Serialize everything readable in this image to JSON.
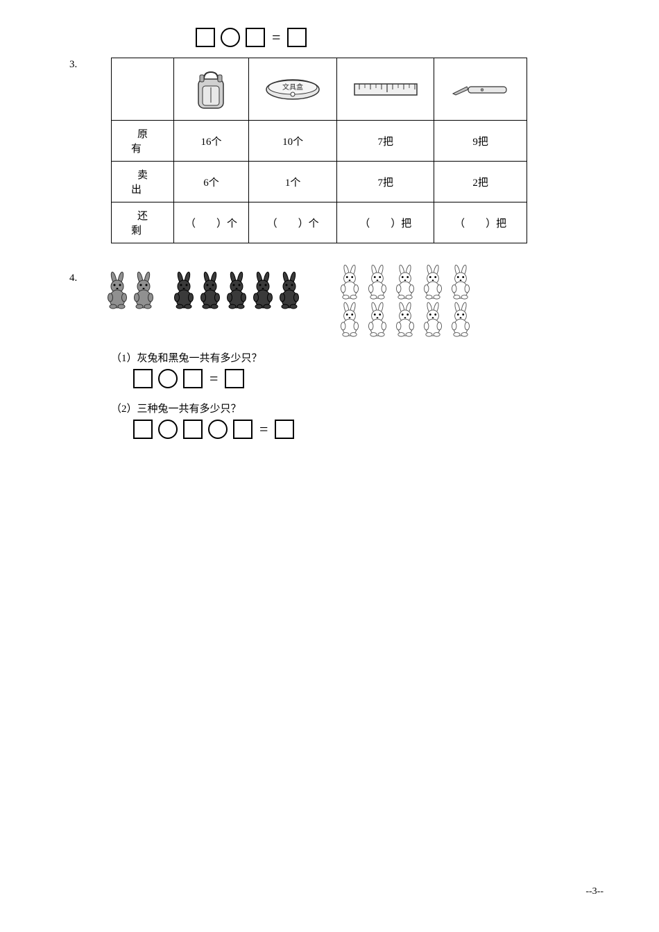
{
  "equation_symbols": {
    "equals": "="
  },
  "problem3": {
    "number": "3.",
    "row_labels": [
      "原有",
      "卖出",
      "还剩"
    ],
    "items": [
      {
        "icon": "backpack",
        "original": "16个",
        "sold": "6个",
        "remaining": "（　　）个"
      },
      {
        "icon": "pencilcase",
        "original": "10个",
        "sold": "1个",
        "remaining": "（　　）个"
      },
      {
        "icon": "ruler",
        "original": "7把",
        "sold": "7把",
        "remaining": "（　　）把"
      },
      {
        "icon": "knife",
        "original": "9把",
        "sold": "2把",
        "remaining": "（　　）把"
      }
    ]
  },
  "problem4": {
    "number": "4.",
    "gray_rabbits": 2,
    "black_rabbits": 5,
    "white_rabbits": 10,
    "q1": "（1）灰兔和黑兔一共有多少只？",
    "q2": "（2）三种兔一共有多少只？"
  },
  "page_number": "--3--",
  "colors": {
    "background": "#ffffff",
    "text": "#000000",
    "border": "#000000",
    "rabbit_gray": "#909090",
    "rabbit_black": "#3a3a3a",
    "rabbit_white": "#ffffff"
  }
}
